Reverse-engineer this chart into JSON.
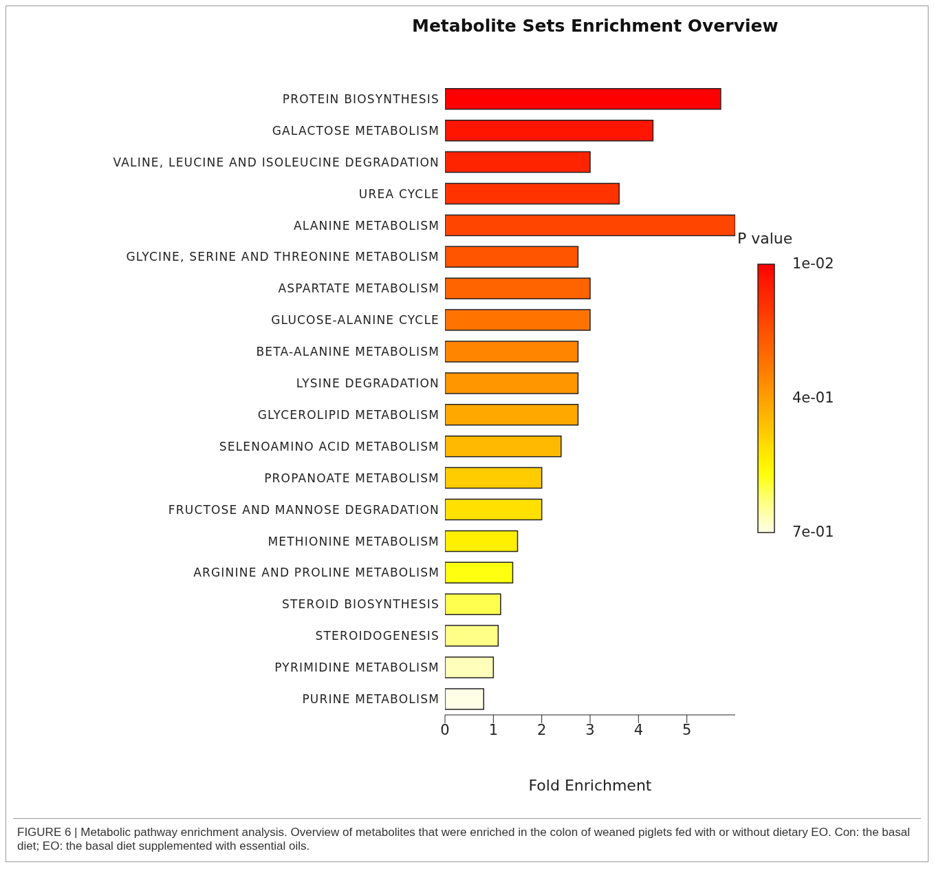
{
  "chart_data": {
    "type": "bar",
    "orientation": "horizontal",
    "title": "Metabolite Sets Enrichment Overview",
    "xlabel": "Fold Enrichment",
    "categories": [
      "PROTEIN BIOSYNTHESIS",
      "GALACTOSE METABOLISM",
      "VALINE, LEUCINE AND ISOLEUCINE DEGRADATION",
      "UREA CYCLE",
      "ALANINE METABOLISM",
      "GLYCINE, SERINE AND THREONINE METABOLISM",
      "ASPARTATE METABOLISM",
      "GLUCOSE-ALANINE CYCLE",
      "BETA-ALANINE METABOLISM",
      "LYSINE DEGRADATION",
      "GLYCEROLIPID METABOLISM",
      "SELENOAMINO ACID METABOLISM",
      "PROPANOATE METABOLISM",
      "FRUCTOSE AND MANNOSE DEGRADATION",
      "METHIONINE METABOLISM",
      "ARGININE AND PROLINE METABOLISM",
      "STEROID BIOSYNTHESIS",
      "STEROIDOGENESIS",
      "PYRIMIDINE METABOLISM",
      "PURINE METABOLISM"
    ],
    "values": [
      5.7,
      4.3,
      3.0,
      3.6,
      6.0,
      2.75,
      3.0,
      3.0,
      2.75,
      2.75,
      2.75,
      2.4,
      2.0,
      2.0,
      1.5,
      1.4,
      1.15,
      1.1,
      1.0,
      0.8
    ],
    "colors": [
      "#ff0000",
      "#ff1500",
      "#ff2400",
      "#ff3300",
      "#ff4500",
      "#ff5500",
      "#ff6400",
      "#ff7400",
      "#ff8500",
      "#ff9600",
      "#ffa800",
      "#ffba00",
      "#ffcc00",
      "#ffe000",
      "#fff000",
      "#ffff10",
      "#ffff50",
      "#ffff88",
      "#ffffbb",
      "#ffffe5"
    ],
    "xlim": [
      0,
      6
    ],
    "xticks": [
      0,
      1,
      2,
      3,
      4,
      5
    ],
    "clabel": "P value",
    "clim": [
      0.01,
      0.7
    ],
    "cticks": [
      {
        "value": 0.01,
        "label": "1e-02"
      },
      {
        "value": 0.355,
        "label": "4e-01"
      },
      {
        "value": 0.7,
        "label": "7e-01"
      }
    ],
    "grid": false,
    "legend": false,
    "annotations": [
      "FIGURE 6 | Metabolic pathway enrichment analysis. Overview of metabolites that were enriched in the colon of weaned piglets fed with or without dietary EO. Con: the basal diet; EO: the basal diet supplemented with essential oils."
    ]
  }
}
